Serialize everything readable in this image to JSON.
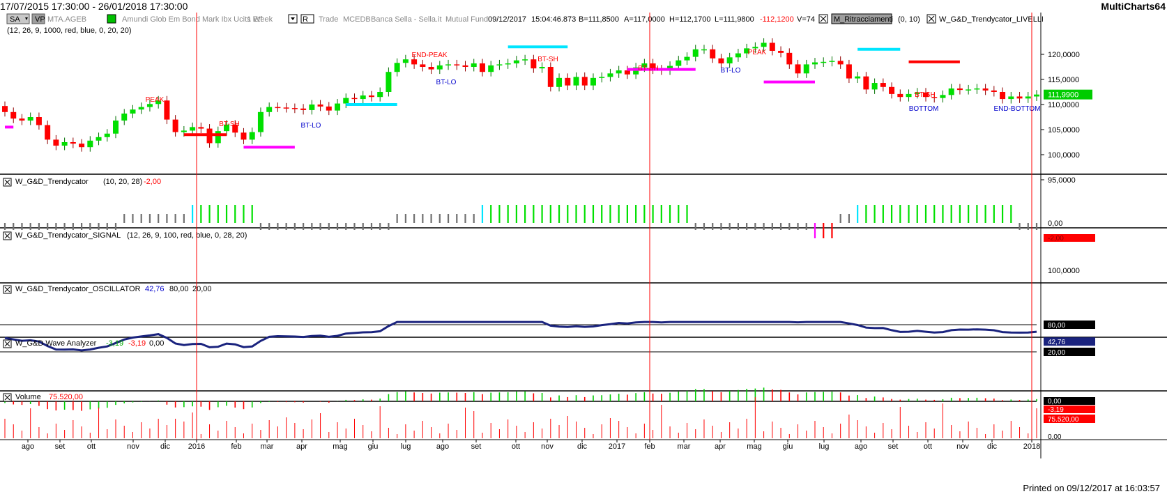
{
  "window": {
    "date_range": "17/07/2015 17:30:00 - 26/01/2018 17:30:00",
    "app_name": "MultiCharts64"
  },
  "toolbar": {
    "sa_button": "SA",
    "vp_button": "VP",
    "symbol": "MTA.AGEB",
    "description": "Amundi Glob Em Bond Mark Ibx Ucits Etf",
    "resolution": "1 Week",
    "range_button": "R",
    "data_type": "Trade",
    "exchange": "MCEDB",
    "broker": "Banca Sella - Sella.it",
    "category": "Mutual Fund",
    "quote": {
      "date": "09/12/2017",
      "time": "15:04:46.873",
      "bid": "B=111,8500",
      "ask": "A=117,0000",
      "high": "H=112,1700",
      "low": "L=111,9800",
      "change": "-112,1200",
      "volume": "V=74"
    },
    "study1_name": "M_Ritracciamenti",
    "study1_params": "(0, 10)",
    "study2_name": "W_G&D_Trendycator_LIVELLI",
    "study2_params": "(12, 26, 9, 1000, red, blue, 0, 20, 20)"
  },
  "colors": {
    "up_candle": "#00e000",
    "down_candle": "#ff0000",
    "cyan": "#00e5ff",
    "magenta": "#ff00ff",
    "blue": "#0000ee",
    "navy": "#1a237e",
    "price_tag": "#00cc00",
    "grid_gray": "#808080"
  },
  "price_axis": {
    "labels": [
      "120,0000",
      "115,0000",
      "110,0000",
      "105,0000",
      "100,0000",
      "95,0000"
    ],
    "last_price": "111,9900"
  },
  "annotations": [
    {
      "text": "PEAK",
      "color": "red"
    },
    {
      "text": "BT-SH",
      "color": "red"
    },
    {
      "text": "BT-LO",
      "color": "blue"
    },
    {
      "text": "END-PEAK",
      "color": "red"
    },
    {
      "text": "BT-LO",
      "color": "blue"
    },
    {
      "text": "BT-SH",
      "color": "red"
    },
    {
      "text": "BT-SH",
      "color": "red"
    },
    {
      "text": "BT-LO",
      "color": "blue"
    },
    {
      "text": "PEAK",
      "color": "red"
    },
    {
      "text": "BT-SH",
      "color": "red"
    },
    {
      "text": "BOTTOM",
      "color": "blue"
    },
    {
      "text": "END-BOTTOM",
      "color": "blue"
    }
  ],
  "panes": {
    "trendycator": {
      "name": "W_G&D_Trendycator",
      "params": "(10, 20, 28)",
      "value": "-2,00",
      "axis_label": "0,00",
      "tag": "-2,00"
    },
    "signal": {
      "name": "W_G&D_Trendycator_SIGNAL",
      "params": "(12, 26, 9, 100, red, blue, 0, 28, 20)",
      "axis_label": "100,0000"
    },
    "oscillator": {
      "name": "W_G&D_Trendycator_OSCILLATOR",
      "value": "42,76",
      "level_high": "80,00",
      "level_low": "20,00",
      "tag_high": "80,00",
      "tag_value": "42,76",
      "tag_low": "20,00"
    },
    "wave": {
      "name": "W_G&D Wave Analyzer",
      "value1": "-3,19",
      "value2": "-3,19",
      "value3": "0,00",
      "tag_zero": "0,00",
      "tag_value": "-3,19"
    },
    "volume": {
      "name": "Volume",
      "value": "75.520,00",
      "tag_value": "75.520,00",
      "tag_zero": "0,00"
    }
  },
  "time_axis": [
    "ago",
    "set",
    "ott",
    "nov",
    "dic",
    "2016",
    "feb",
    "mar",
    "apr",
    "mag",
    "giu",
    "lug",
    "ago",
    "set",
    "ott",
    "nov",
    "dic",
    "2017",
    "feb",
    "mar",
    "apr",
    "mag",
    "giu",
    "lug",
    "ago",
    "set",
    "ott",
    "nov",
    "dic",
    "2018"
  ],
  "footer": "Printed on 09/12/2017 at 16:03:57",
  "chart_data": {
    "type": "candlestick",
    "bar_interval": "1 Week",
    "close": [
      108.5,
      107.2,
      106.8,
      107.5,
      105.9,
      103.0,
      101.8,
      102.5,
      102.2,
      101.5,
      102.8,
      103.5,
      104.2,
      106.8,
      108.2,
      109.0,
      109.5,
      110.1,
      110.8,
      107.0,
      104.5,
      104.8,
      105.5,
      105.2,
      102.3,
      104.7,
      106.0,
      104.4,
      103.0,
      104.5,
      108.5,
      109.5,
      109.4,
      109.3,
      109.2,
      108.9,
      110.0,
      109.6,
      108.8,
      110.2,
      111.3,
      111.1,
      111.8,
      111.5,
      112.5,
      116.5,
      118.3,
      119.0,
      118.0,
      117.5,
      117.0,
      117.8,
      118.0,
      117.8,
      117.5,
      118.2,
      116.5,
      117.8,
      118.0,
      118.2,
      118.8,
      119.0,
      117.2,
      117.5,
      113.5,
      115.3,
      113.8,
      115.5,
      113.8,
      115.3,
      115.5,
      116.2,
      116.8,
      116.0,
      117.4,
      118.2,
      117.0,
      116.8,
      117.7,
      118.8,
      119.5,
      121.0,
      121.0,
      119.2,
      118.2,
      119.4,
      120.2,
      121.2,
      121.5,
      122.3,
      120.7,
      120.3,
      118.0,
      116.2,
      118.0,
      118.4,
      118.5,
      118.7,
      118.0,
      115.2,
      115.6,
      113.0,
      114.3,
      113.5,
      112.1,
      111.5,
      112.1,
      112.4,
      111.5,
      111.3,
      111.9,
      113.2,
      112.9,
      113.0,
      113.2,
      112.8,
      112.5,
      111.1,
      111.6,
      111.2,
      111.6,
      111.99
    ]
  }
}
